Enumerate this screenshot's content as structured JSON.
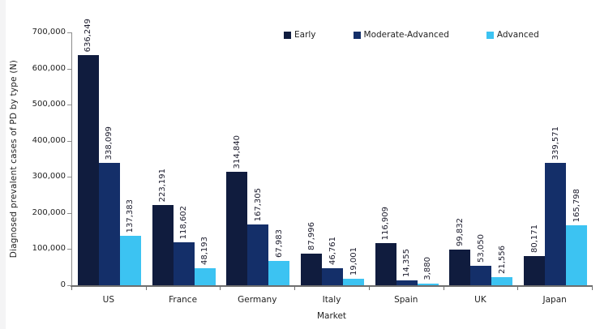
{
  "chart_data": {
    "type": "bar",
    "title": "",
    "xlabel": "Market",
    "ylabel": "Diagnosed prevalent cases of PD by type (N)",
    "categories": [
      "US",
      "France",
      "Germany",
      "Italy",
      "Spain",
      "UK",
      "Japan"
    ],
    "series": [
      {
        "name": "Early",
        "color": "#101c3e",
        "values": [
          636249,
          223191,
          314840,
          87996,
          116909,
          99832,
          80171
        ]
      },
      {
        "name": "Moderate-Advanced",
        "color": "#142f69",
        "values": [
          338099,
          118602,
          167305,
          46761,
          14355,
          53050,
          339571
        ]
      },
      {
        "name": "Advanced",
        "color": "#3cc3f2",
        "values": [
          137383,
          48193,
          67983,
          19001,
          3880,
          21556,
          165798
        ]
      }
    ],
    "ylim": [
      0,
      700000
    ],
    "ytick_step": 100000,
    "ytick_labels": [
      "0",
      "100,000",
      "200,000",
      "300,000",
      "400,000",
      "500,000",
      "600,000",
      "700,000"
    ],
    "legend_position": "top",
    "grid": false,
    "bar_value_labels_rotated": true
  },
  "colors": {
    "background": "#ffffff",
    "left_strip": "#f4f4f5",
    "axis": "#8c8c8c",
    "baseline": "#6e6e6e",
    "text": "#1f1f1f",
    "value_label": "#1a1a2b"
  }
}
